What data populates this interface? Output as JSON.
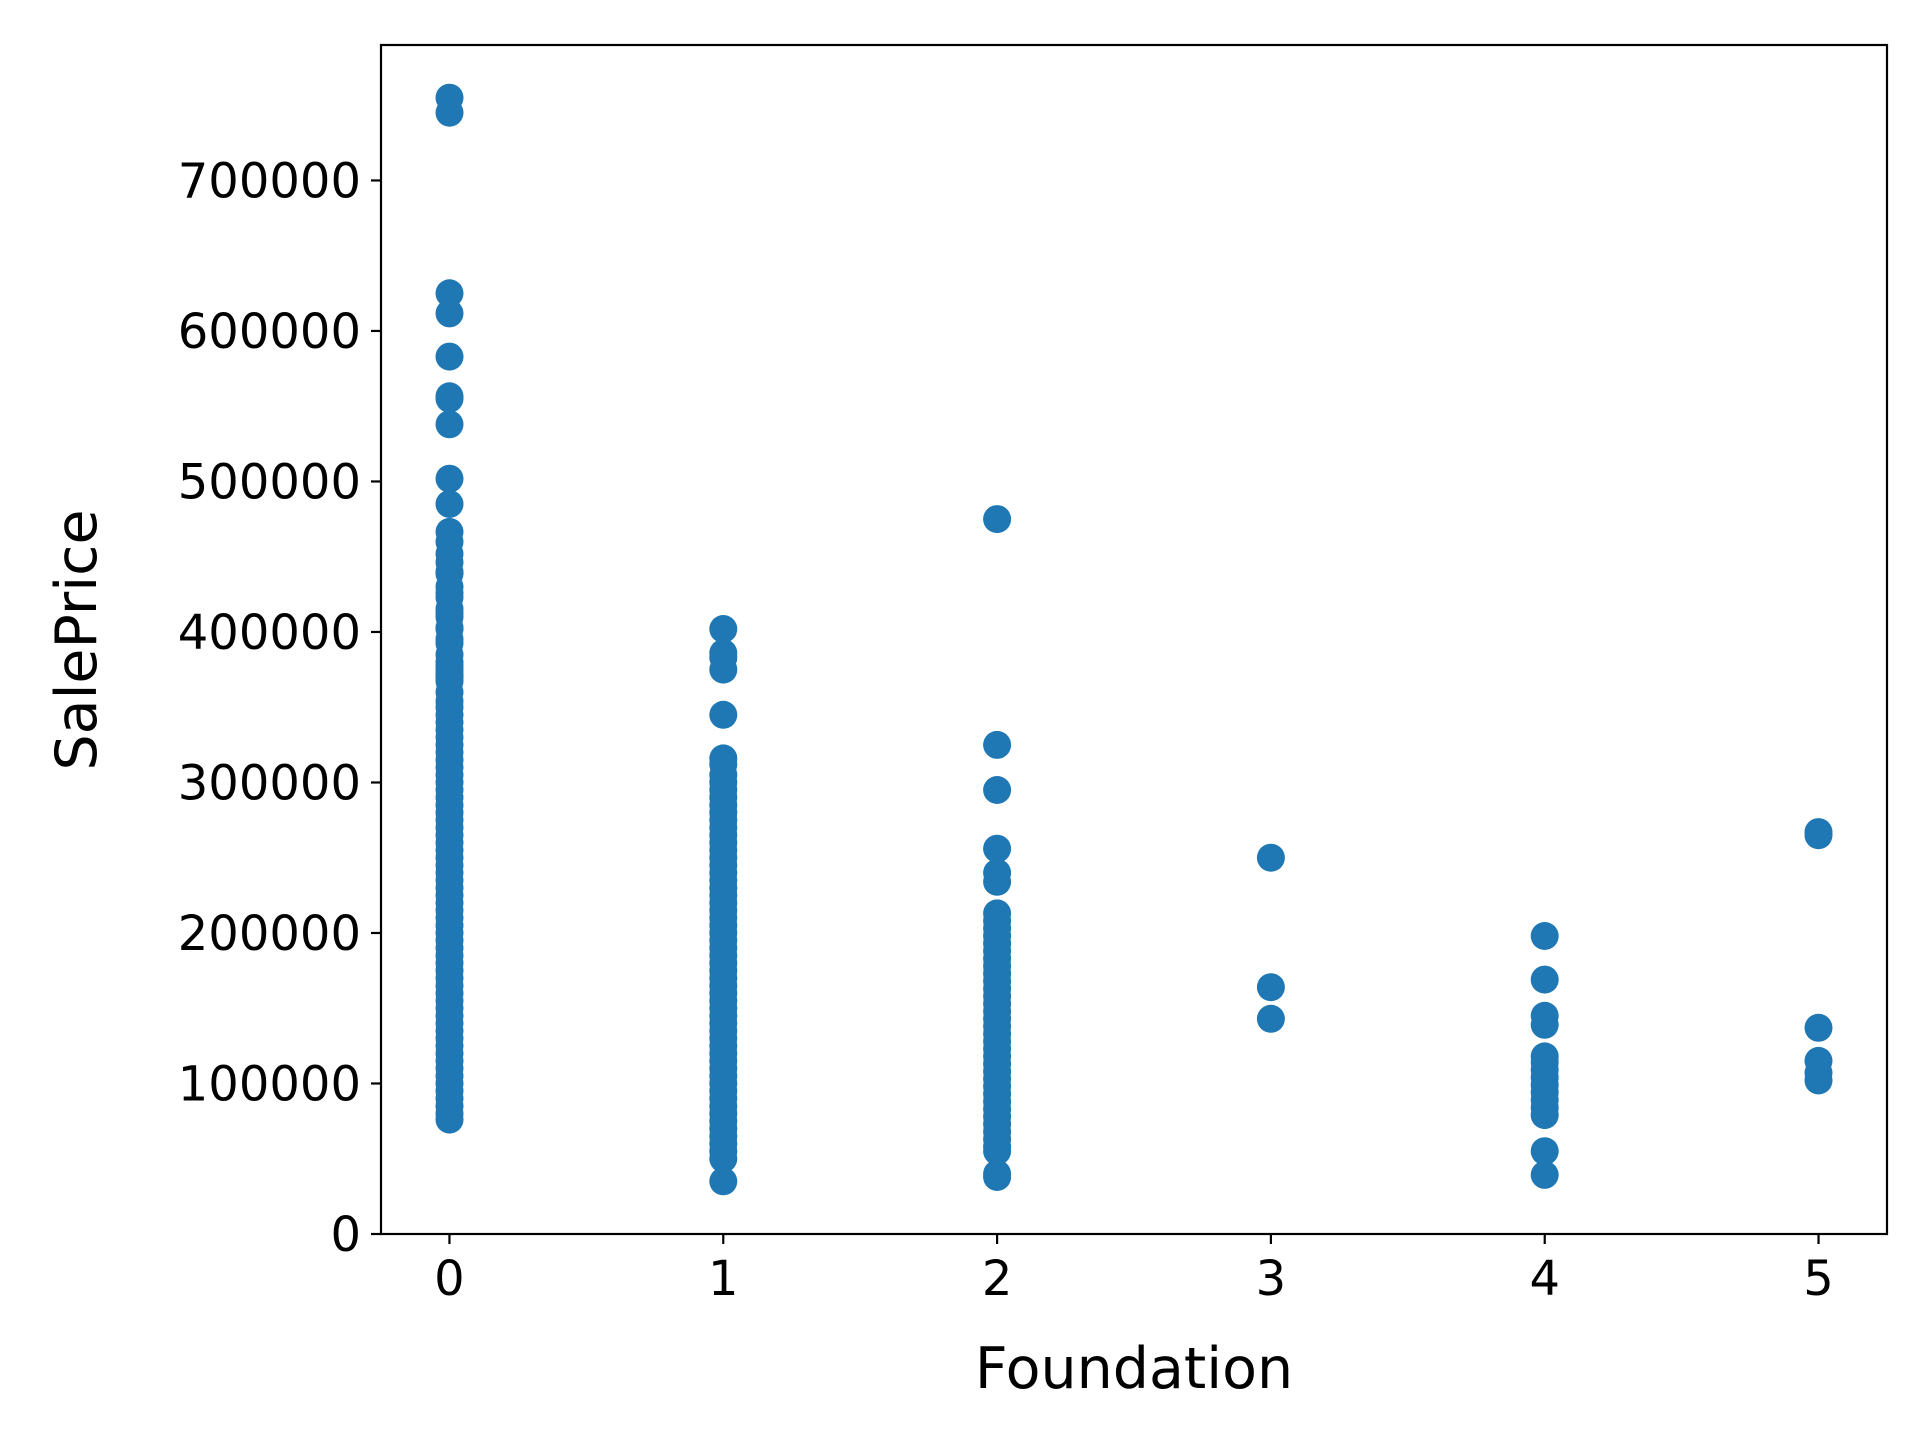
{
  "chart_data": {
    "type": "scatter",
    "title": "",
    "xlabel": "Foundation",
    "ylabel": "SalePrice",
    "xlim": [
      -0.25,
      5.25
    ],
    "ylim": [
      0,
      790000
    ],
    "xticks": [
      0,
      1,
      2,
      3,
      4,
      5
    ],
    "xtick_labels": [
      "0",
      "1",
      "2",
      "3",
      "4",
      "5"
    ],
    "yticks": [
      0,
      100000,
      200000,
      300000,
      400000,
      500000,
      600000,
      700000
    ],
    "ytick_labels": [
      "0",
      "100000",
      "200000",
      "300000",
      "400000",
      "500000",
      "600000",
      "700000"
    ],
    "grid": false,
    "color": "#1f77b4",
    "series": [
      {
        "points": [
          [
            0,
            755000
          ],
          [
            0,
            745000
          ],
          [
            0,
            625000
          ],
          [
            0,
            611657
          ],
          [
            0,
            582933
          ],
          [
            0,
            556581
          ],
          [
            0,
            555000
          ],
          [
            0,
            538000
          ],
          [
            0,
            501837
          ],
          [
            0,
            485000
          ],
          [
            0,
            466500
          ],
          [
            0,
            460000
          ],
          [
            0,
            451950
          ],
          [
            0,
            446261
          ],
          [
            0,
            440000
          ],
          [
            0,
            438780
          ],
          [
            0,
            430000
          ],
          [
            0,
            426000
          ],
          [
            0,
            423000
          ],
          [
            0,
            415298
          ],
          [
            0,
            412500
          ],
          [
            0,
            410000
          ],
          [
            0,
            402861
          ],
          [
            0,
            402000
          ],
          [
            0,
            395192
          ],
          [
            0,
            392500
          ],
          [
            0,
            385000
          ],
          [
            0,
            380000
          ],
          [
            0,
            377500
          ],
          [
            0,
            375000
          ],
          [
            0,
            372402
          ],
          [
            0,
            370878
          ],
          [
            0,
            369900
          ],
          [
            0,
            367294
          ],
          [
            0,
            360000
          ],
          [
            0,
            354000
          ],
          [
            0,
            350000
          ],
          [
            0,
            345000
          ],
          [
            0,
            340000
          ],
          [
            0,
            335000
          ],
          [
            0,
            330000
          ],
          [
            0,
            325000
          ],
          [
            0,
            320000
          ],
          [
            0,
            315000
          ],
          [
            0,
            310000
          ],
          [
            0,
            305000
          ],
          [
            0,
            300000
          ],
          [
            0,
            295000
          ],
          [
            0,
            290000
          ],
          [
            0,
            285000
          ],
          [
            0,
            280000
          ],
          [
            0,
            275000
          ],
          [
            0,
            270000
          ],
          [
            0,
            265000
          ],
          [
            0,
            260000
          ],
          [
            0,
            255000
          ],
          [
            0,
            250000
          ],
          [
            0,
            245000
          ],
          [
            0,
            240000
          ],
          [
            0,
            235000
          ],
          [
            0,
            230000
          ],
          [
            0,
            225000
          ],
          [
            0,
            220000
          ],
          [
            0,
            215000
          ],
          [
            0,
            210000
          ],
          [
            0,
            205000
          ],
          [
            0,
            200000
          ],
          [
            0,
            195000
          ],
          [
            0,
            190000
          ],
          [
            0,
            185000
          ],
          [
            0,
            180000
          ],
          [
            0,
            175000
          ],
          [
            0,
            170000
          ],
          [
            0,
            165000
          ],
          [
            0,
            160000
          ],
          [
            0,
            155000
          ],
          [
            0,
            150000
          ],
          [
            0,
            145000
          ],
          [
            0,
            140000
          ],
          [
            0,
            135000
          ],
          [
            0,
            130000
          ],
          [
            0,
            125000
          ],
          [
            0,
            120000
          ],
          [
            0,
            115000
          ],
          [
            0,
            110000
          ],
          [
            0,
            105000
          ],
          [
            0,
            100000
          ],
          [
            0,
            95000
          ],
          [
            0,
            90000
          ],
          [
            0,
            85000
          ],
          [
            0,
            80000
          ],
          [
            0,
            76000
          ],
          [
            1,
            402000
          ],
          [
            1,
            386000
          ],
          [
            1,
            383000
          ],
          [
            1,
            375000
          ],
          [
            1,
            345000
          ],
          [
            1,
            316000
          ],
          [
            1,
            312000
          ],
          [
            1,
            305000
          ],
          [
            1,
            300000
          ],
          [
            1,
            295000
          ],
          [
            1,
            290000
          ],
          [
            1,
            285000
          ],
          [
            1,
            280000
          ],
          [
            1,
            275000
          ],
          [
            1,
            270000
          ],
          [
            1,
            265000
          ],
          [
            1,
            260000
          ],
          [
            1,
            255000
          ],
          [
            1,
            250000
          ],
          [
            1,
            245000
          ],
          [
            1,
            240000
          ],
          [
            1,
            235000
          ],
          [
            1,
            230000
          ],
          [
            1,
            225000
          ],
          [
            1,
            220000
          ],
          [
            1,
            215000
          ],
          [
            1,
            210000
          ],
          [
            1,
            205000
          ],
          [
            1,
            200000
          ],
          [
            1,
            195000
          ],
          [
            1,
            190000
          ],
          [
            1,
            185000
          ],
          [
            1,
            180000
          ],
          [
            1,
            175000
          ],
          [
            1,
            170000
          ],
          [
            1,
            165000
          ],
          [
            1,
            160000
          ],
          [
            1,
            155000
          ],
          [
            1,
            150000
          ],
          [
            1,
            145000
          ],
          [
            1,
            140000
          ],
          [
            1,
            135000
          ],
          [
            1,
            130000
          ],
          [
            1,
            125000
          ],
          [
            1,
            120000
          ],
          [
            1,
            115000
          ],
          [
            1,
            110000
          ],
          [
            1,
            105000
          ],
          [
            1,
            100000
          ],
          [
            1,
            95000
          ],
          [
            1,
            90000
          ],
          [
            1,
            85000
          ],
          [
            1,
            80000
          ],
          [
            1,
            75000
          ],
          [
            1,
            70000
          ],
          [
            1,
            65000
          ],
          [
            1,
            60000
          ],
          [
            1,
            55000
          ],
          [
            1,
            50000
          ],
          [
            1,
            35000
          ],
          [
            2,
            475000
          ],
          [
            2,
            325000
          ],
          [
            2,
            295000
          ],
          [
            2,
            256000
          ],
          [
            2,
            240000
          ],
          [
            2,
            234000
          ],
          [
            2,
            213000
          ],
          [
            2,
            208000
          ],
          [
            2,
            203000
          ],
          [
            2,
            198000
          ],
          [
            2,
            193000
          ],
          [
            2,
            188000
          ],
          [
            2,
            183000
          ],
          [
            2,
            178000
          ],
          [
            2,
            173000
          ],
          [
            2,
            168000
          ],
          [
            2,
            163000
          ],
          [
            2,
            158000
          ],
          [
            2,
            153000
          ],
          [
            2,
            148000
          ],
          [
            2,
            143000
          ],
          [
            2,
            138000
          ],
          [
            2,
            133000
          ],
          [
            2,
            128000
          ],
          [
            2,
            123000
          ],
          [
            2,
            118000
          ],
          [
            2,
            113000
          ],
          [
            2,
            108000
          ],
          [
            2,
            103000
          ],
          [
            2,
            98000
          ],
          [
            2,
            93000
          ],
          [
            2,
            88000
          ],
          [
            2,
            83000
          ],
          [
            2,
            78000
          ],
          [
            2,
            73000
          ],
          [
            2,
            68000
          ],
          [
            2,
            63000
          ],
          [
            2,
            58000
          ],
          [
            2,
            55000
          ],
          [
            2,
            40000
          ],
          [
            2,
            37900
          ],
          [
            3,
            250000
          ],
          [
            3,
            164000
          ],
          [
            3,
            143000
          ],
          [
            4,
            198000
          ],
          [
            4,
            169000
          ],
          [
            4,
            145000
          ],
          [
            4,
            139000
          ],
          [
            4,
            118000
          ],
          [
            4,
            114000
          ],
          [
            4,
            109000
          ],
          [
            4,
            104000
          ],
          [
            4,
            99000
          ],
          [
            4,
            94000
          ],
          [
            4,
            89000
          ],
          [
            4,
            84000
          ],
          [
            4,
            79000
          ],
          [
            4,
            55000
          ],
          [
            4,
            39300
          ],
          [
            5,
            267000
          ],
          [
            5,
            265000
          ],
          [
            5,
            137000
          ],
          [
            5,
            115000
          ],
          [
            5,
            107000
          ],
          [
            5,
            102000
          ]
        ]
      }
    ]
  }
}
